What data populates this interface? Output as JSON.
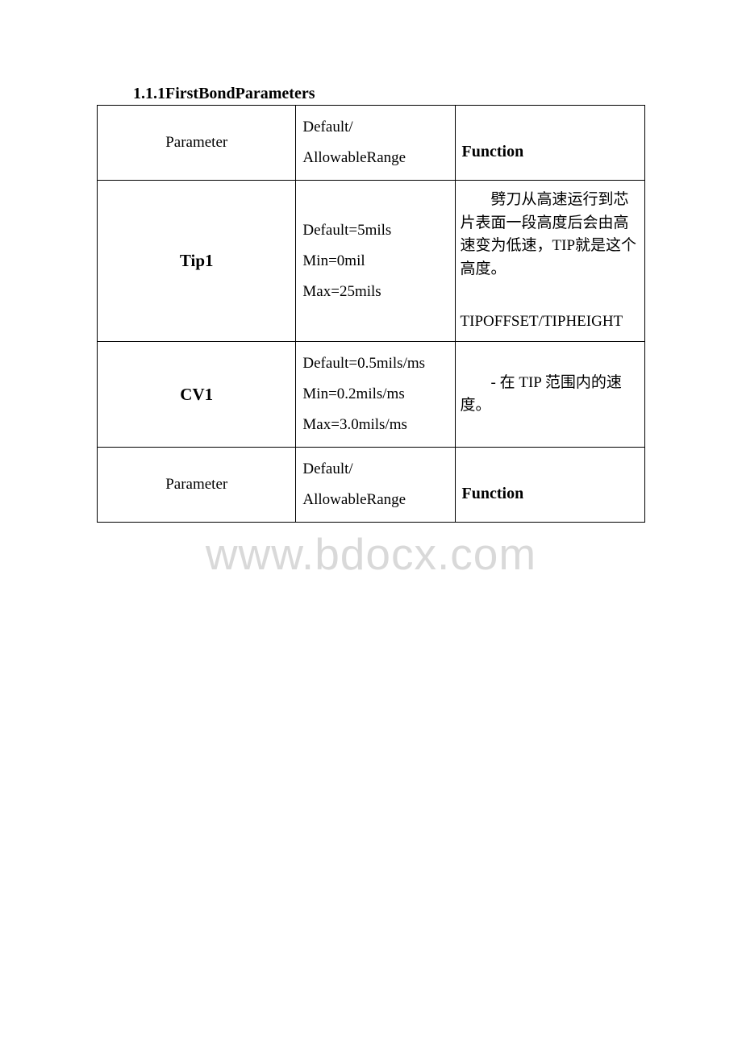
{
  "section": {
    "title": "1.1.1FirstBondParameters"
  },
  "table": {
    "header1": {
      "param": "Parameter",
      "range_line1": "Default/",
      "range_line2": "AllowableRange",
      "func": "Function"
    },
    "row_tip1": {
      "param": "Tip1",
      "range_line1": "Default=5mils",
      "range_line2": "Min=0mil",
      "range_line3": "Max=25mils",
      "func_para1": "　　劈刀从高速运行到芯片表面一段高度后会由高速变为低速，TIP就是这个高度。",
      "func_para2": "　　TIPOFFSET/TIPHEIGHT"
    },
    "row_cv1": {
      "param": "CV1",
      "range_line1": "Default=0.5mils/ms",
      "range_line2": "Min=0.2mils/ms",
      "range_line3": "Max=3.0mils/ms",
      "func": "　　- 在 TIP 范围内的速度。"
    },
    "header2": {
      "param": "Parameter",
      "range_line1": "Default/",
      "range_line2": "AllowableRange",
      "func": "Function"
    }
  },
  "watermark": "www.bdocx.com",
  "colors": {
    "text": "#000000",
    "background": "#ffffff",
    "border": "#000000",
    "watermark": "#d9d9d9"
  }
}
